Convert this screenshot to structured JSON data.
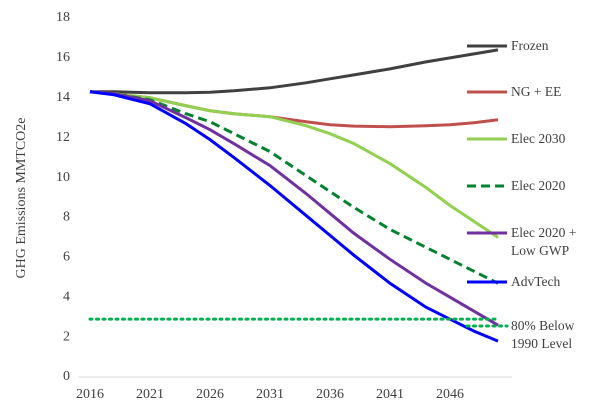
{
  "chart_data": {
    "type": "line",
    "y_label": "GHG Emissions MMTCO2e",
    "x": [
      2016,
      2018,
      2021,
      2024,
      2026,
      2028,
      2031,
      2034,
      2036,
      2038,
      2041,
      2044,
      2046,
      2048,
      2050
    ],
    "xlim": [
      2015,
      2051
    ],
    "xticks": [
      2016,
      2021,
      2026,
      2031,
      2036,
      2041,
      2046
    ],
    "ylim": [
      0,
      18
    ],
    "yticks": [
      0,
      2,
      4,
      6,
      8,
      10,
      12,
      14,
      16,
      18
    ],
    "grid": false,
    "legend": "right",
    "series": [
      {
        "name": "Frozen",
        "color": "#404040",
        "style": "solid",
        "values": [
          14.3,
          14.3,
          14.25,
          14.25,
          14.28,
          14.35,
          14.5,
          14.75,
          14.95,
          15.15,
          15.45,
          15.8,
          16.0,
          16.2,
          16.4
        ]
      },
      {
        "name": "NG + EE",
        "color": "#c0504d",
        "style": "solid",
        "values": [
          14.3,
          14.2,
          14.0,
          13.6,
          13.35,
          13.2,
          13.05,
          12.8,
          12.65,
          12.58,
          12.55,
          12.6,
          12.65,
          12.75,
          12.9
        ]
      },
      {
        "name": "Elec 2030",
        "color": "#92d050",
        "style": "solid",
        "values": [
          14.3,
          14.2,
          14.0,
          13.6,
          13.35,
          13.2,
          13.05,
          12.6,
          12.2,
          11.7,
          10.7,
          9.5,
          8.6,
          7.8,
          7.0
        ]
      },
      {
        "name": "Elec 2020",
        "color": "#00822e",
        "style": "dashed",
        "values": [
          14.3,
          14.2,
          13.9,
          13.2,
          12.8,
          12.2,
          11.3,
          10.1,
          9.3,
          8.5,
          7.4,
          6.5,
          5.9,
          5.3,
          4.7
        ]
      },
      {
        "name": "Elec 2020 + Low GWP",
        "color": "#7030a0",
        "style": "solid",
        "values": [
          14.3,
          14.2,
          13.85,
          13.0,
          12.4,
          11.7,
          10.6,
          9.2,
          8.2,
          7.2,
          5.9,
          4.7,
          4.0,
          3.3,
          2.6
        ]
      },
      {
        "name": "AdvTech",
        "color": "#0000ff",
        "style": "solid",
        "values": [
          14.3,
          14.15,
          13.7,
          12.7,
          11.9,
          11.0,
          9.6,
          8.1,
          7.1,
          6.1,
          4.7,
          3.5,
          2.9,
          2.3,
          1.8
        ]
      },
      {
        "name": "80% Below 1990 Level",
        "color": "#00b050",
        "style": "dotted",
        "values": [
          2.9,
          2.9,
          2.9,
          2.9,
          2.9,
          2.9,
          2.9,
          2.9,
          2.9,
          2.9,
          2.9,
          2.9,
          2.9,
          2.9,
          2.9
        ]
      }
    ]
  }
}
